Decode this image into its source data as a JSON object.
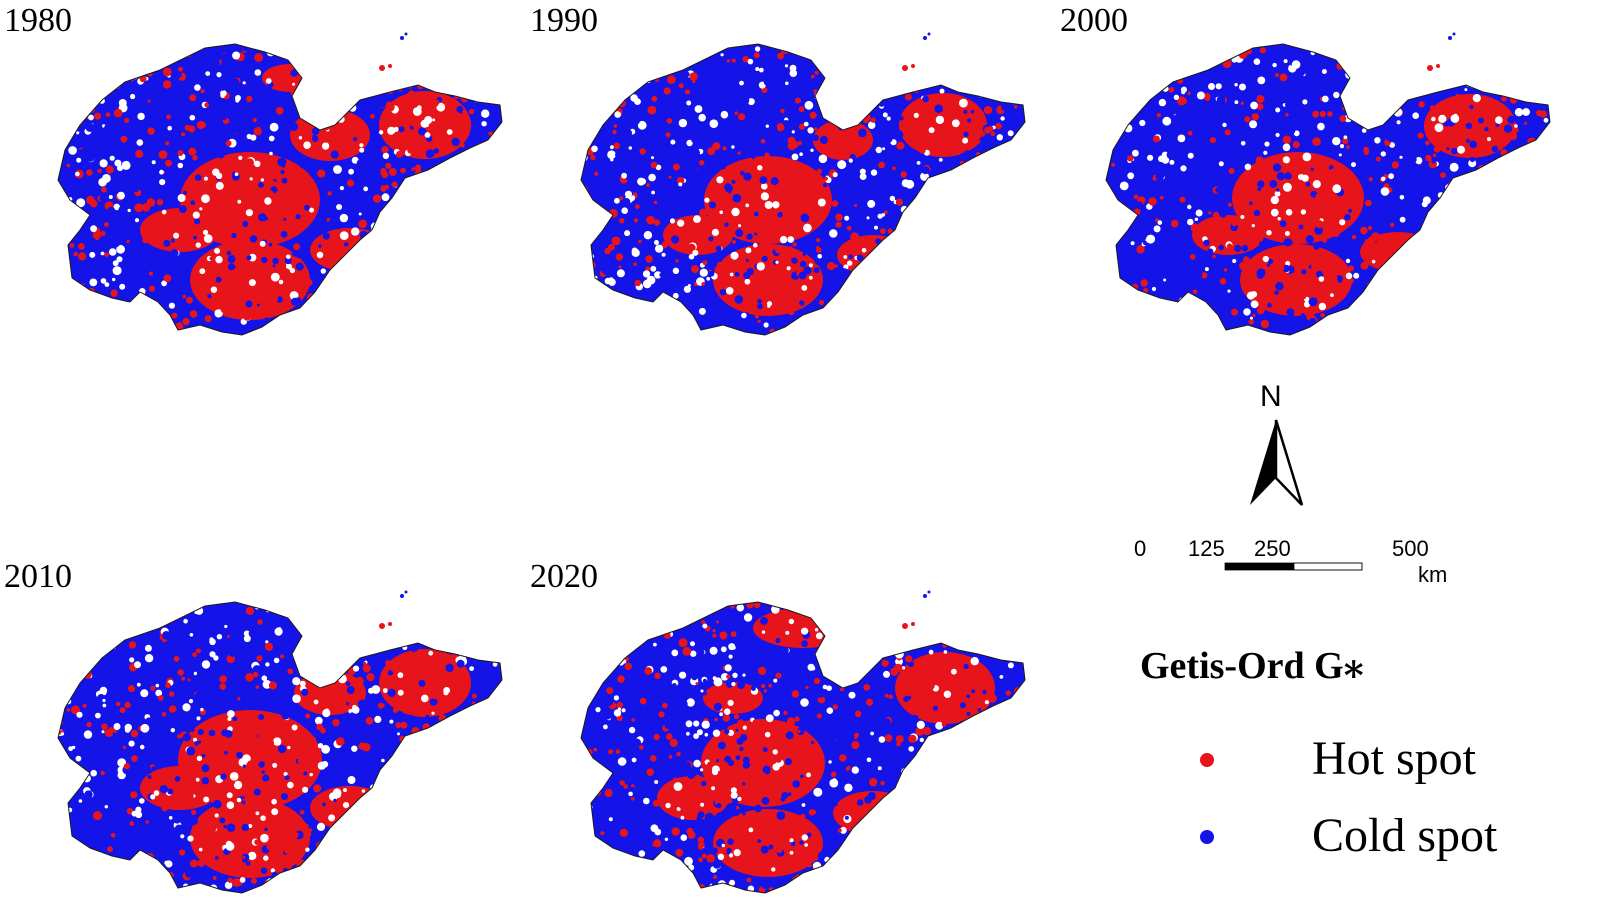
{
  "maps": [
    {
      "year": "1980"
    },
    {
      "year": "1990"
    },
    {
      "year": "2000"
    },
    {
      "year": "2010"
    },
    {
      "year": "2020"
    }
  ],
  "north_arrow": {
    "letter": "N"
  },
  "scale_bar": {
    "ticks": [
      "0",
      "125",
      "250",
      "500"
    ],
    "unit": "km"
  },
  "legend": {
    "title": "Getis-Ord G⁎",
    "items": [
      {
        "label": "Hot spot",
        "color": "#e8141b"
      },
      {
        "label": "Cold spot",
        "color": "#1414e8"
      }
    ]
  },
  "colors": {
    "hot": "#e8141b",
    "cold": "#1414e8"
  }
}
